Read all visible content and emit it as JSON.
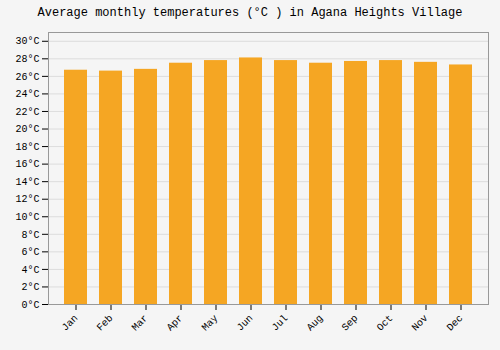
{
  "chart_data": {
    "type": "bar",
    "title": "Average monthly temperatures (°C ) in Agana Heights Village",
    "categories": [
      "Jan",
      "Feb",
      "Mar",
      "Apr",
      "May",
      "Jun",
      "Jul",
      "Aug",
      "Sep",
      "Oct",
      "Nov",
      "Dec"
    ],
    "values": [
      26.7,
      26.6,
      26.8,
      27.5,
      27.8,
      28.1,
      27.8,
      27.5,
      27.7,
      27.8,
      27.6,
      27.3
    ],
    "color": "#F5A623",
    "ylim": [
      0,
      31
    ],
    "yticks": [
      {
        "value": 0,
        "label": "0°C"
      },
      {
        "value": 2,
        "label": "2°C"
      },
      {
        "value": 4,
        "label": "4°C"
      },
      {
        "value": 6,
        "label": "6°C"
      },
      {
        "value": 8,
        "label": "8°C"
      },
      {
        "value": 10,
        "label": "10°C"
      },
      {
        "value": 12,
        "label": "12°C"
      },
      {
        "value": 14,
        "label": "14°C"
      },
      {
        "value": 16,
        "label": "16°C"
      },
      {
        "value": 18,
        "label": "18°C"
      },
      {
        "value": 20,
        "label": "20°C"
      },
      {
        "value": 22,
        "label": "22°C"
      },
      {
        "value": 24,
        "label": "24°C"
      },
      {
        "value": 26,
        "label": "26°C"
      },
      {
        "value": 28,
        "label": "28°C"
      },
      {
        "value": 30,
        "label": "30°C"
      }
    ],
    "grid": true
  }
}
